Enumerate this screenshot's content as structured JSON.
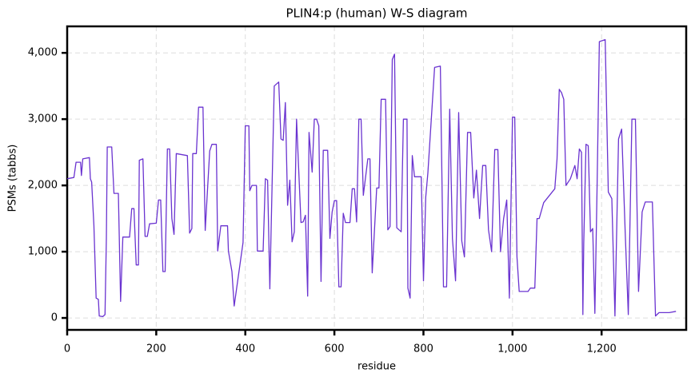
{
  "chart_data": {
    "type": "line",
    "title": "PLIN4:p (human) W-S diagram",
    "x_label": "residue",
    "y_label": "PSMs (tabbs)",
    "xlim": [
      0,
      1390
    ],
    "ylim": [
      -180,
      4400
    ],
    "xticks": [
      0,
      200,
      400,
      600,
      800,
      {
        "value": 1000,
        "label": "1,000"
      },
      {
        "value": 1200,
        "label": "1,200"
      }
    ],
    "yticks": [
      0,
      {
        "value": 1000,
        "label": "1,000"
      },
      {
        "value": 2000,
        "label": "2,000"
      },
      {
        "value": 3000,
        "label": "3,000"
      },
      {
        "value": 4000,
        "label": "4,000"
      }
    ],
    "grid": true,
    "x": [
      0,
      15,
      20,
      30,
      32,
      35,
      50,
      52,
      55,
      60,
      65,
      70,
      72,
      80,
      85,
      88,
      90,
      100,
      105,
      115,
      120,
      125,
      140,
      145,
      150,
      155,
      160,
      162,
      170,
      175,
      180,
      185,
      200,
      205,
      210,
      215,
      220,
      225,
      230,
      235,
      240,
      245,
      270,
      275,
      280,
      282,
      290,
      295,
      305,
      310,
      320,
      325,
      335,
      338,
      345,
      360,
      362,
      370,
      375,
      395,
      400,
      408,
      410,
      415,
      425,
      427,
      440,
      445,
      450,
      455,
      465,
      475,
      480,
      485,
      490,
      495,
      500,
      505,
      510,
      515,
      525,
      530,
      535,
      540,
      543,
      550,
      555,
      560,
      565,
      570,
      575,
      585,
      590,
      595,
      600,
      605,
      610,
      615,
      620,
      625,
      635,
      640,
      645,
      650,
      655,
      660,
      665,
      675,
      680,
      685,
      695,
      700,
      705,
      715,
      720,
      725,
      730,
      735,
      740,
      750,
      755,
      763,
      765,
      770,
      775,
      780,
      795,
      800,
      805,
      810,
      825,
      838,
      845,
      852,
      859,
      865,
      872,
      879,
      886,
      892,
      899,
      906,
      913,
      919,
      926,
      933,
      940,
      946,
      953,
      960,
      967,
      973,
      980,
      987,
      993,
      1000,
      1005,
      1010,
      1015,
      1030,
      1035,
      1040,
      1050,
      1055,
      1060,
      1070,
      1095,
      1100,
      1105,
      1110,
      1115,
      1120,
      1130,
      1140,
      1145,
      1150,
      1155,
      1158,
      1160,
      1165,
      1170,
      1175,
      1180,
      1185,
      1190,
      1195,
      1208,
      1215,
      1223,
      1230,
      1238,
      1245,
      1253,
      1260,
      1268,
      1276,
      1283,
      1291,
      1298,
      1314,
      1321,
      1329,
      1352,
      1367
    ],
    "series": [
      {
        "color": "#6a33d0",
        "values": [
          2100,
          2120,
          2350,
          2350,
          2150,
          2400,
          2420,
          2100,
          2050,
          1400,
          300,
          280,
          30,
          20,
          50,
          1200,
          2580,
          2580,
          1880,
          1880,
          250,
          1220,
          1220,
          1650,
          1650,
          800,
          800,
          2380,
          2400,
          1230,
          1230,
          1420,
          1430,
          1780,
          1780,
          700,
          700,
          2550,
          2550,
          1500,
          1260,
          2480,
          2450,
          1280,
          1350,
          2480,
          2480,
          3180,
          3180,
          1320,
          2520,
          2620,
          2620,
          1010,
          1390,
          1390,
          1010,
          700,
          180,
          1140,
          2900,
          2900,
          1920,
          2000,
          2000,
          1010,
          1010,
          2100,
          2080,
          440,
          3500,
          3560,
          2700,
          2680,
          3250,
          1700,
          2080,
          1150,
          1300,
          3000,
          1440,
          1450,
          1550,
          330,
          2800,
          2200,
          3000,
          3000,
          2900,
          550,
          2530,
          2530,
          1200,
          1600,
          1770,
          1770,
          470,
          470,
          1580,
          1440,
          1440,
          1950,
          1950,
          1450,
          3000,
          3000,
          1850,
          2400,
          2400,
          680,
          1960,
          1960,
          3300,
          3300,
          1330,
          1380,
          3900,
          3980,
          1360,
          1300,
          3000,
          3000,
          450,
          300,
          2450,
          2130,
          2130,
          560,
          1820,
          2190,
          3780,
          3800,
          470,
          470,
          3150,
          1200,
          560,
          3100,
          1160,
          920,
          2800,
          2800,
          1810,
          2230,
          1500,
          2300,
          2300,
          1330,
          1000,
          2540,
          2540,
          1000,
          1500,
          1780,
          300,
          3030,
          3030,
          920,
          400,
          400,
          400,
          450,
          450,
          1500,
          1500,
          1740,
          1950,
          2400,
          3450,
          3400,
          3300,
          2000,
          2100,
          2300,
          2100,
          2550,
          2500,
          50,
          1130,
          2620,
          2600,
          1300,
          1350,
          70,
          2000,
          4170,
          4200,
          1900,
          1800,
          30,
          2700,
          2850,
          1300,
          50,
          3000,
          3000,
          400,
          1600,
          1750,
          1750,
          30,
          80,
          80,
          100
        ]
      }
    ]
  }
}
